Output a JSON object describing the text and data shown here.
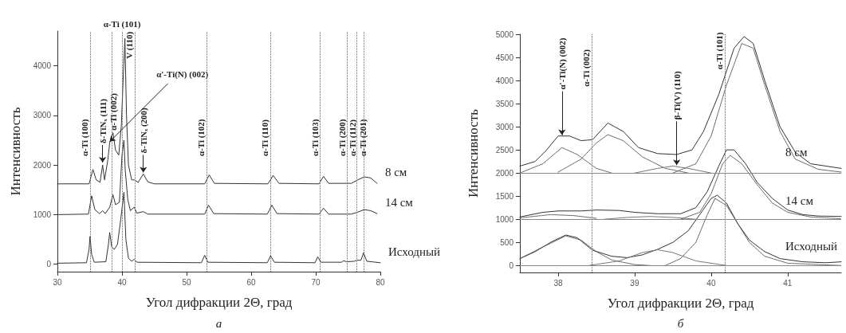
{
  "chart_data": [
    {
      "type": "line",
      "xlabel": "Угол дифракции 2Θ, град",
      "ylabel": "Интенсивность",
      "xlim": [
        30,
        80
      ],
      "xticks": [
        30,
        40,
        50,
        60,
        70,
        80
      ],
      "ylim": [
        -150,
        4700
      ],
      "yticks": [
        0,
        1000,
        2000,
        3000,
        4000
      ],
      "grid": false,
      "legend": false,
      "marker": "none",
      "series": [
        {
          "name": "8 см",
          "color": "#333333",
          "x": [
            30,
            34.9,
            35.5,
            36.0,
            36.6,
            37.0,
            37.3,
            37.8,
            38.1,
            38.6,
            39.0,
            39.5,
            39.9,
            40.2,
            40.45,
            40.7,
            41.0,
            41.5,
            41.9,
            42.5,
            43.3,
            44.0,
            45,
            52.8,
            53.5,
            54.3,
            62.6,
            63.4,
            64.3,
            70.5,
            71.2,
            72,
            75.5,
            76.5,
            77.5,
            78.5,
            79.5
          ],
          "values": [
            1620,
            1620,
            1910,
            1700,
            1650,
            2000,
            1700,
            2100,
            2450,
            2650,
            2300,
            2200,
            2800,
            3800,
            4550,
            3000,
            2000,
            1700,
            1700,
            1650,
            1820,
            1660,
            1620,
            1620,
            1800,
            1630,
            1620,
            1790,
            1630,
            1620,
            1770,
            1630,
            1630,
            1700,
            1760,
            1740,
            1630
          ]
        },
        {
          "name": "14 см",
          "color": "#333333",
          "x": [
            30,
            34.8,
            35.3,
            35.8,
            36.5,
            37.0,
            37.4,
            38.1,
            38.6,
            39.0,
            39.6,
            40.0,
            40.3,
            40.5,
            40.9,
            41.3,
            41.9,
            42.3,
            43.3,
            44,
            52.8,
            53.4,
            54.2,
            62.5,
            63.2,
            64.0,
            70.5,
            71.2,
            72,
            75.5,
            76.5,
            77.5,
            78.5,
            79.5
          ],
          "values": [
            1000,
            1010,
            1380,
            1100,
            1020,
            1080,
            1020,
            1150,
            1400,
            1200,
            1250,
            2200,
            2500,
            1900,
            1300,
            1080,
            1150,
            1030,
            1060,
            1010,
            1010,
            1190,
            1020,
            1010,
            1190,
            1020,
            1010,
            1130,
            1010,
            1010,
            1050,
            1100,
            1080,
            1020
          ]
        },
        {
          "name": "Исходный",
          "color": "#333333",
          "x": [
            30,
            34.5,
            34.9,
            35.05,
            35.3,
            35.7,
            37.5,
            37.9,
            38.1,
            38.4,
            38.8,
            39.3,
            39.8,
            40.3,
            40.6,
            41.0,
            41.5,
            41.9,
            42.3,
            52.3,
            52.8,
            53.3,
            62.5,
            63.0,
            63.6,
            69.9,
            70.3,
            70.8,
            74.0,
            74.3,
            74.8,
            76.0,
            76.3,
            77.0,
            77.4,
            77.9,
            80
          ],
          "values": [
            20,
            30,
            300,
            560,
            200,
            40,
            50,
            400,
            640,
            350,
            300,
            400,
            900,
            1450,
            500,
            120,
            60,
            100,
            40,
            30,
            180,
            40,
            30,
            170,
            40,
            30,
            150,
            40,
            40,
            70,
            50,
            60,
            80,
            80,
            230,
            60,
            30
          ]
        }
      ],
      "ref_lines": [
        {
          "axis": "x",
          "value": 35.1,
          "label": "α-Ti (100)",
          "line_style": "dotted",
          "color": "#666666"
        },
        {
          "axis": "x",
          "value": 38.4,
          "label": "α-Ti (002)",
          "line_style": "dotted",
          "color": "#666666"
        },
        {
          "axis": "x",
          "value": 40.0,
          "label": "α-Ti (101)",
          "line_style": "dotted",
          "color": "#666666"
        },
        {
          "axis": "x",
          "value": 42.0,
          "label": "V (110)",
          "line_style": "dotted",
          "color": "#666666"
        },
        {
          "axis": "x",
          "value": 53.1,
          "label": "α-Ti (102)",
          "line_style": "dotted",
          "color": "#666666"
        },
        {
          "axis": "x",
          "value": 63.0,
          "label": "α-Ti (110)",
          "line_style": "dotted",
          "color": "#666666"
        },
        {
          "axis": "x",
          "value": 70.7,
          "label": "α-Ti (103)",
          "line_style": "dotted",
          "color": "#666666"
        },
        {
          "axis": "x",
          "value": 74.9,
          "label": "α-Ti (200)",
          "line_style": "dotted",
          "color": "#666666"
        },
        {
          "axis": "x",
          "value": 76.3,
          "label": "α-Ti (112)",
          "line_style": "dotted",
          "color": "#666666"
        },
        {
          "axis": "x",
          "value": 77.4,
          "label": "α-Ti (201)",
          "line_style": "dotted",
          "color": "#666666"
        }
      ],
      "annotations": [
        {
          "text": "δ-TiNₓ (111)",
          "x": 37.0,
          "y": 2050
        },
        {
          "text": "δ-TiNₓ (200)",
          "x": 43.3,
          "y": 1850
        },
        {
          "text": "α'-Ti(N) (002)",
          "x": 38.1,
          "y": 2470
        },
        "а"
      ]
    },
    {
      "type": "line",
      "xlabel": "Угол дифракции 2Θ, град",
      "ylabel": "Интенсивность",
      "xlim": [
        37.5,
        41.7
      ],
      "xticks": [
        38,
        39,
        40,
        41
      ],
      "ylim": [
        -150,
        5000
      ],
      "yticks": [
        0,
        500,
        1000,
        1500,
        2000,
        2500,
        3000,
        3500,
        4000,
        4500,
        5000
      ],
      "grid": false,
      "legend": false,
      "marker": "none",
      "series": [
        {
          "name": "8 см",
          "color": "#333333",
          "x": [
            37.5,
            37.7,
            37.85,
            38.0,
            38.15,
            38.3,
            38.45,
            38.65,
            38.85,
            39.05,
            39.3,
            39.55,
            39.75,
            39.9,
            40.1,
            40.3,
            40.43,
            40.55,
            40.7,
            40.9,
            41.1,
            41.3,
            41.7
          ],
          "values": [
            2150,
            2250,
            2500,
            2800,
            2800,
            2700,
            2720,
            3080,
            2900,
            2550,
            2420,
            2400,
            2500,
            2900,
            3700,
            4700,
            4950,
            4800,
            4000,
            3000,
            2450,
            2200,
            2100
          ]
        },
        {
          "name": "14 см",
          "color": "#333333",
          "x": [
            37.5,
            37.8,
            38.0,
            38.3,
            38.5,
            38.8,
            39.0,
            39.3,
            39.6,
            39.8,
            39.95,
            40.1,
            40.2,
            40.3,
            40.45,
            40.6,
            40.8,
            41.0,
            41.2,
            41.4,
            41.7
          ],
          "values": [
            1050,
            1150,
            1180,
            1180,
            1200,
            1190,
            1150,
            1120,
            1120,
            1250,
            1600,
            2150,
            2500,
            2500,
            2200,
            1800,
            1450,
            1200,
            1100,
            1070,
            1060
          ]
        },
        {
          "name": "Исходный",
          "color": "#333333",
          "x": [
            37.5,
            37.7,
            37.9,
            38.1,
            38.25,
            38.45,
            38.7,
            38.9,
            39.1,
            39.3,
            39.5,
            39.7,
            39.85,
            40.0,
            40.08,
            40.2,
            40.35,
            40.5,
            40.7,
            40.9,
            41.2,
            41.5,
            41.7
          ],
          "values": [
            150,
            300,
            500,
            660,
            600,
            330,
            200,
            170,
            230,
            350,
            500,
            750,
            1100,
            1450,
            1520,
            1350,
            900,
            550,
            300,
            150,
            80,
            60,
            80
          ]
        },
        {
          "color": "#555555",
          "line_style": "dotted",
          "x": [
            37.5,
            37.8,
            38.05,
            38.25,
            38.5,
            38.7
          ],
          "values": [
            2000,
            2200,
            2550,
            2400,
            2100,
            2000
          ]
        },
        {
          "color": "#555555",
          "line_style": "dotted",
          "x": [
            38.0,
            38.3,
            38.5,
            38.65,
            38.85,
            39.1,
            39.4,
            39.7
          ],
          "values": [
            2020,
            2300,
            2650,
            2830,
            2700,
            2350,
            2100,
            2000
          ]
        },
        {
          "color": "#555555",
          "line_style": "dotted",
          "x": [
            39.5,
            39.8,
            40.0,
            40.2,
            40.4,
            40.55,
            40.7,
            40.9,
            41.1,
            41.4,
            41.7
          ],
          "values": [
            2000,
            2200,
            2800,
            3900,
            4800,
            4700,
            3900,
            2900,
            2300,
            2080,
            2020
          ]
        },
        {
          "color": "#777777",
          "x": [
            39.0,
            39.3,
            39.5,
            39.7,
            40.0
          ],
          "values": [
            2000,
            2100,
            2150,
            2100,
            2000
          ]
        },
        {
          "color": "#555555",
          "line_style": "dotted",
          "x": [
            37.5,
            37.9,
            38.2,
            38.5
          ],
          "values": [
            1030,
            1100,
            1080,
            1020
          ]
        },
        {
          "color": "#777777",
          "x": [
            38.6,
            38.9,
            39.2,
            39.5,
            39.8
          ],
          "values": [
            1000,
            1040,
            1060,
            1040,
            1000
          ]
        },
        {
          "color": "#555555",
          "line_style": "dotted",
          "x": [
            39.6,
            39.85,
            40.0,
            40.15,
            40.25,
            40.4,
            40.6,
            40.8,
            41.0,
            41.3,
            41.7
          ],
          "values": [
            1000,
            1150,
            1550,
            2200,
            2380,
            2200,
            1750,
            1350,
            1150,
            1050,
            1010
          ]
        },
        {
          "color": "#555555",
          "line_style": "dotted",
          "x": [
            37.5,
            37.8,
            38.1,
            38.3,
            38.5,
            38.7,
            39.0,
            39.2
          ],
          "values": [
            150,
            400,
            640,
            550,
            300,
            120,
            20,
            0
          ]
        },
        {
          "color": "#555555",
          "line_style": "dotted",
          "x": [
            39.4,
            39.6,
            39.8,
            39.95,
            40.05,
            40.2,
            40.35,
            40.5,
            40.7,
            41.0,
            41.7
          ],
          "values": [
            0,
            150,
            500,
            1100,
            1450,
            1300,
            900,
            500,
            200,
            50,
            0
          ]
        },
        {
          "color": "#777777",
          "x": [
            38.4,
            38.8,
            39.1,
            39.3,
            39.5,
            39.8,
            40.2
          ],
          "values": [
            0,
            100,
            280,
            340,
            280,
            100,
            0
          ]
        }
      ],
      "ref_lines": [
        {
          "axis": "y",
          "value": 0,
          "line_style": "solid",
          "color": "#888888"
        },
        {
          "axis": "y",
          "value": 1000,
          "line_style": "solid",
          "color": "#888888"
        },
        {
          "axis": "y",
          "value": 2000,
          "line_style": "solid",
          "color": "#888888"
        },
        {
          "axis": "x",
          "value": 38.44,
          "label": "α-Ti (002)",
          "line_style": "dotted",
          "color": "#666666"
        },
        {
          "axis": "x",
          "value": 40.18,
          "label": "α-Ti (101)",
          "line_style": "dotted",
          "color": "#666666"
        }
      ],
      "annotations": [
        {
          "text": "α'-Ti(N) (002)",
          "x": 38.05,
          "y": 2820
        },
        {
          "text": "β-Ti(V) (110)",
          "x": 39.55,
          "y": 2170
        },
        "б"
      ]
    }
  ]
}
